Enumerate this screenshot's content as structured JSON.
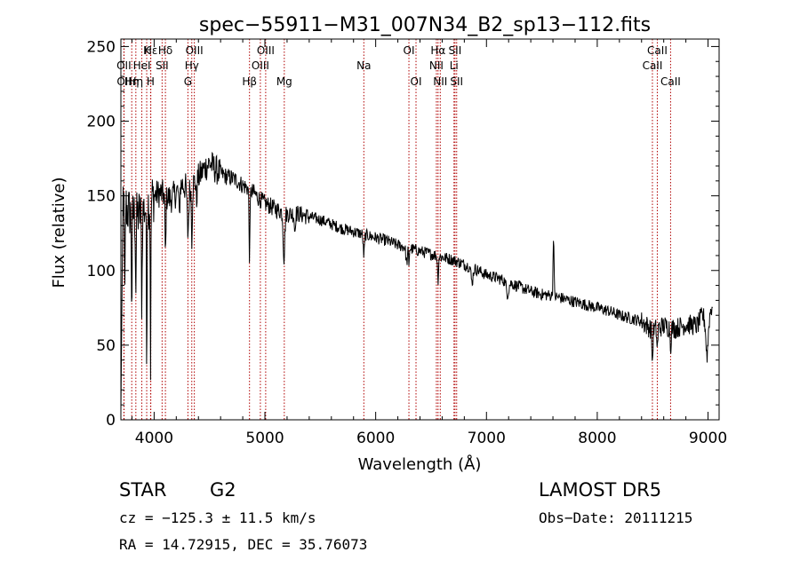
{
  "chart_data": {
    "type": "line",
    "title": "spec−55911−M31_007N34_B2_sp13−112.fits",
    "xlabel": "Wavelength (Å)",
    "ylabel": "Flux (relative)",
    "xlim": [
      3700,
      9100
    ],
    "ylim": [
      0,
      255
    ],
    "xticks": [
      4000,
      5000,
      6000,
      7000,
      8000,
      9000
    ],
    "yticks": [
      0,
      50,
      100,
      150,
      200,
      250
    ],
    "grid": false,
    "line_color": "#000000",
    "marker_color": "#b00000",
    "continuum": [
      [
        3700,
        5
      ],
      [
        3720,
        150
      ],
      [
        3760,
        140
      ],
      [
        3800,
        138
      ],
      [
        3850,
        137
      ],
      [
        3900,
        140
      ],
      [
        3950,
        145
      ],
      [
        4000,
        150
      ],
      [
        4050,
        152
      ],
      [
        4100,
        150
      ],
      [
        4150,
        148
      ],
      [
        4200,
        152
      ],
      [
        4250,
        158
      ],
      [
        4300,
        155
      ],
      [
        4350,
        158
      ],
      [
        4400,
        162
      ],
      [
        4450,
        168
      ],
      [
        4500,
        172
      ],
      [
        4550,
        168
      ],
      [
        4600,
        165
      ],
      [
        4650,
        163
      ],
      [
        4700,
        162
      ],
      [
        4750,
        160
      ],
      [
        4800,
        157
      ],
      [
        4850,
        155
      ],
      [
        4900,
        152
      ],
      [
        4950,
        148
      ],
      [
        5000,
        145
      ],
      [
        5100,
        141
      ],
      [
        5200,
        138
      ],
      [
        5300,
        138
      ],
      [
        5400,
        136
      ],
      [
        5500,
        134
      ],
      [
        5600,
        131
      ],
      [
        5700,
        128
      ],
      [
        5800,
        126
      ],
      [
        5900,
        124
      ],
      [
        6000,
        122
      ],
      [
        6100,
        120
      ],
      [
        6200,
        117
      ],
      [
        6300,
        115
      ],
      [
        6400,
        113
      ],
      [
        6500,
        111
      ],
      [
        6600,
        109
      ],
      [
        6700,
        107
      ],
      [
        6800,
        104
      ],
      [
        6900,
        101
      ],
      [
        7000,
        97
      ],
      [
        7100,
        95
      ],
      [
        7200,
        92
      ],
      [
        7300,
        89
      ],
      [
        7400,
        86
      ],
      [
        7500,
        84
      ],
      [
        7600,
        83
      ],
      [
        7700,
        81
      ],
      [
        7800,
        79
      ],
      [
        7900,
        77
      ],
      [
        8000,
        75
      ],
      [
        8100,
        73
      ],
      [
        8200,
        70
      ],
      [
        8300,
        68
      ],
      [
        8400,
        66
      ],
      [
        8500,
        60
      ],
      [
        8600,
        63
      ],
      [
        8700,
        61
      ],
      [
        8800,
        64
      ],
      [
        8900,
        63
      ],
      [
        8950,
        70
      ],
      [
        9000,
        62
      ],
      [
        9020,
        72
      ],
      [
        9040,
        78
      ]
    ],
    "absorption": [
      {
        "x": 3735,
        "depth": 70,
        "width": 5
      },
      {
        "x": 3798,
        "depth": 60,
        "width": 5
      },
      {
        "x": 3835,
        "depth": 50,
        "width": 5
      },
      {
        "x": 3889,
        "depth": 60,
        "width": 5
      },
      {
        "x": 3933,
        "depth": 110,
        "width": 4
      },
      {
        "x": 3968,
        "depth": 110,
        "width": 4
      },
      {
        "x": 4102,
        "depth": 40,
        "width": 6
      },
      {
        "x": 4227,
        "depth": 20,
        "width": 6
      },
      {
        "x": 4305,
        "depth": 30,
        "width": 10
      },
      {
        "x": 4340,
        "depth": 35,
        "width": 6
      },
      {
        "x": 4383,
        "depth": 15,
        "width": 6
      },
      {
        "x": 4861,
        "depth": 45,
        "width": 6
      },
      {
        "x": 5172,
        "depth": 30,
        "width": 10
      },
      {
        "x": 5270,
        "depth": 12,
        "width": 6
      },
      {
        "x": 5893,
        "depth": 14,
        "width": 8
      },
      {
        "x": 6280,
        "depth": 10,
        "width": 10
      },
      {
        "x": 6300,
        "depth": 14,
        "width": 4
      },
      {
        "x": 6563,
        "depth": 16,
        "width": 6
      },
      {
        "x": 6870,
        "depth": 10,
        "width": 12
      },
      {
        "x": 7190,
        "depth": 8,
        "width": 15
      },
      {
        "x": 8498,
        "depth": 22,
        "width": 6
      },
      {
        "x": 8542,
        "depth": 14,
        "width": 6
      },
      {
        "x": 8662,
        "depth": 12,
        "width": 6
      },
      {
        "x": 8990,
        "depth": 20,
        "width": 12
      }
    ],
    "emission": [
      {
        "x": 7605,
        "height": 42,
        "width": 6
      }
    ],
    "line_markers": [
      {
        "x": 3727,
        "label": "OII",
        "row": 2
      },
      {
        "x": 3729,
        "label": "OII",
        "row": 3
      },
      {
        "x": 3798,
        "label": "Hη",
        "row": 3
      },
      {
        "x": 3835,
        "label": "Hη",
        "row": 3
      },
      {
        "x": 3889,
        "label": "HeI",
        "row": 2
      },
      {
        "x": 3933,
        "label": "K",
        "row": 1
      },
      {
        "x": 3968,
        "label": "H",
        "row": 3
      },
      {
        "x": 3970,
        "label": "Hε",
        "row": 1
      },
      {
        "x": 4072,
        "label": "SII",
        "row": 2
      },
      {
        "x": 4102,
        "label": "Hδ",
        "row": 1
      },
      {
        "x": 4305,
        "label": "G",
        "row": 3
      },
      {
        "x": 4340,
        "label": "Hγ",
        "row": 2
      },
      {
        "x": 4363,
        "label": "OIII",
        "row": 1
      },
      {
        "x": 4861,
        "label": "Hβ",
        "row": 3
      },
      {
        "x": 4959,
        "label": "OIII",
        "row": 2
      },
      {
        "x": 5007,
        "label": "OIII",
        "row": 1
      },
      {
        "x": 5175,
        "label": "Mg",
        "row": 3
      },
      {
        "x": 5893,
        "label": "Na",
        "row": 2
      },
      {
        "x": 6300,
        "label": "OI",
        "row": 1
      },
      {
        "x": 6364,
        "label": "OI",
        "row": 3
      },
      {
        "x": 6548,
        "label": "NII",
        "row": 2
      },
      {
        "x": 6563,
        "label": "Hα",
        "row": 1
      },
      {
        "x": 6583,
        "label": "NII",
        "row": 3
      },
      {
        "x": 6707,
        "label": "Li",
        "row": 2
      },
      {
        "x": 6716,
        "label": "SII",
        "row": 1
      },
      {
        "x": 6731,
        "label": "SII",
        "row": 3
      },
      {
        "x": 8498,
        "label": "CaII",
        "row": 2
      },
      {
        "x": 8542,
        "label": "CaII",
        "row": 1
      },
      {
        "x": 8662,
        "label": "CaII",
        "row": 3
      }
    ]
  },
  "info": {
    "class": "STAR",
    "subclass": "G2",
    "survey": "LAMOST  DR5",
    "cz": "cz = −125.3 ± 11.5 km/s",
    "obs_date": "Obs−Date: 20111215",
    "coords": "RA =  14.72915, DEC =  35.76073"
  }
}
